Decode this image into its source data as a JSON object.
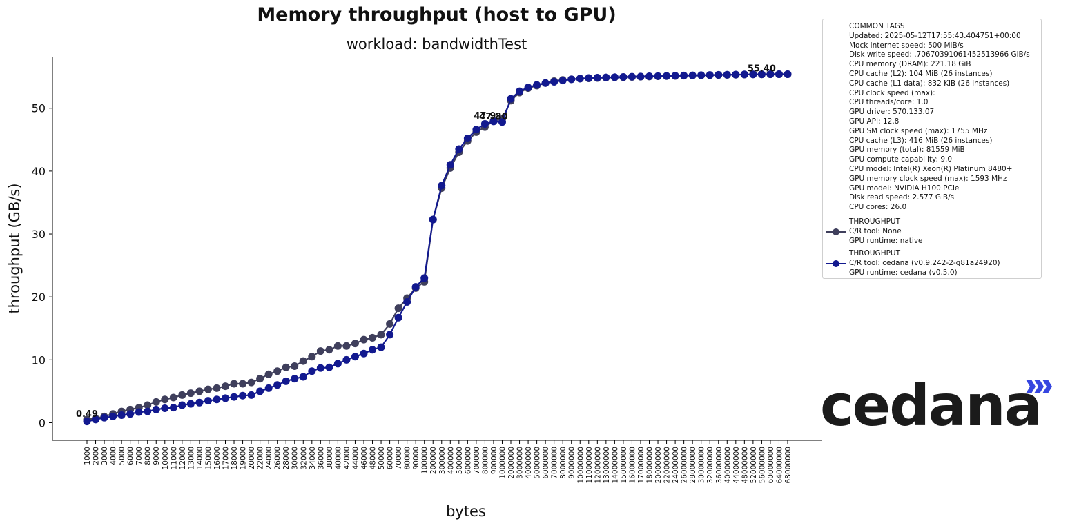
{
  "chart_data": {
    "type": "line",
    "title": "Memory throughput (host to GPU)",
    "subtitle": "workload: bandwidthTest",
    "xlabel": "bytes",
    "ylabel": "throughput (GB/s)",
    "ylim": [
      -2.8,
      58.2
    ],
    "yticks": [
      0,
      10,
      20,
      30,
      40,
      50
    ],
    "grid": false,
    "legend_position": "right",
    "categories": [
      "1000",
      "2000",
      "3000",
      "4000",
      "5000",
      "6000",
      "7000",
      "8000",
      "9000",
      "10000",
      "11000",
      "12000",
      "13000",
      "14000",
      "15000",
      "16000",
      "17000",
      "18000",
      "19000",
      "20000",
      "22000",
      "24000",
      "26000",
      "28000",
      "30000",
      "32000",
      "34000",
      "36000",
      "38000",
      "40000",
      "42000",
      "44000",
      "46000",
      "48000",
      "50000",
      "60000",
      "70000",
      "80000",
      "90000",
      "100000",
      "200000",
      "300000",
      "400000",
      "500000",
      "600000",
      "700000",
      "800000",
      "900000",
      "1000000",
      "2000000",
      "3000000",
      "4000000",
      "5000000",
      "6000000",
      "7000000",
      "8000000",
      "9000000",
      "10000000",
      "11000000",
      "12000000",
      "13000000",
      "14000000",
      "15000000",
      "16000000",
      "17000000",
      "18000000",
      "20000000",
      "22000000",
      "24000000",
      "26000000",
      "28000000",
      "30000000",
      "32000000",
      "36000000",
      "40000000",
      "44000000",
      "48000000",
      "52000000",
      "56000000",
      "60000000",
      "64000000",
      "68000000"
    ],
    "series": [
      {
        "name": "THROUGHPUT",
        "legend_lines": [
          "THROUGHPUT",
          "C/R tool: None",
          "GPU runtime: native"
        ],
        "color": "#3f3f5c",
        "values": [
          0.49,
          0.7,
          1.0,
          1.4,
          1.8,
          2.1,
          2.4,
          2.8,
          3.3,
          3.7,
          4.0,
          4.4,
          4.7,
          5.0,
          5.3,
          5.5,
          5.8,
          6.2,
          6.2,
          6.4,
          7.0,
          7.7,
          8.2,
          8.8,
          9.0,
          9.8,
          10.5,
          11.4,
          11.6,
          12.2,
          12.2,
          12.6,
          13.2,
          13.5,
          14.0,
          15.7,
          18.2,
          19.8,
          21.4,
          22.4,
          32.3,
          37.3,
          40.5,
          43.0,
          44.8,
          46.2,
          47.0,
          48.0,
          48.3,
          51.2,
          52.5,
          53.2,
          53.6,
          54.0,
          54.3,
          54.5,
          54.6,
          54.7,
          54.75,
          54.8,
          54.85,
          54.9,
          54.93,
          54.97,
          55.0,
          55.03,
          55.07,
          55.1,
          55.13,
          55.17,
          55.2,
          55.22,
          55.25,
          55.28,
          55.3,
          55.32,
          55.35,
          55.37,
          55.38,
          55.39,
          55.4,
          55.4
        ]
      },
      {
        "name": "THROUGHPUT",
        "legend_lines": [
          "THROUGHPUT",
          "C/R tool: cedana (v0.9.242-2-g81a24920)",
          "GPU runtime: cedana (v0.5.0)"
        ],
        "color": "#12198f",
        "values": [
          0.2,
          0.5,
          0.8,
          1.0,
          1.2,
          1.4,
          1.7,
          1.8,
          2.1,
          2.3,
          2.4,
          2.8,
          3.0,
          3.2,
          3.5,
          3.7,
          3.9,
          4.1,
          4.3,
          4.4,
          5.0,
          5.5,
          6.0,
          6.6,
          7.0,
          7.3,
          8.2,
          8.7,
          8.8,
          9.4,
          10.0,
          10.5,
          11.0,
          11.6,
          12.0,
          14.0,
          16.7,
          19.2,
          21.6,
          23.0,
          32.3,
          37.7,
          41.0,
          43.5,
          45.2,
          46.6,
          47.5,
          47.9,
          47.8,
          51.5,
          52.7,
          53.3,
          53.7,
          54.0,
          54.2,
          54.4,
          54.6,
          54.7,
          54.8,
          54.85,
          54.9,
          54.93,
          54.97,
          55.0,
          55.03,
          55.07,
          55.1,
          55.13,
          55.17,
          55.2,
          55.22,
          55.25,
          55.28,
          55.3,
          55.32,
          55.35,
          55.37,
          55.38,
          55.39,
          55.4,
          55.4,
          55.4
        ]
      }
    ],
    "annotations": [
      {
        "text": "0.49",
        "category": "1000",
        "value": 0.49
      },
      {
        "text": "47.9",
        "category": "800000",
        "value": 47.9
      },
      {
        "text": "47.80",
        "category": "900000",
        "value": 47.8
      },
      {
        "text": "55.40",
        "category": "56000000",
        "value": 55.4
      }
    ]
  },
  "legend": {
    "tags_header": "COMMON TAGS",
    "tags": [
      "Updated: 2025-05-12T17:55:43.404751+00:00",
      "Mock internet speed: 500 MiB/s",
      "Disk write speed: .70670391061452513966 GiB/s",
      "CPU memory (DRAM): 221.18 GiB",
      "CPU cache (L2): 104 MiB (26 instances)",
      "CPU cache (L1 data): 832 KiB (26 instances)",
      "CPU clock speed (max):",
      "CPU threads/core: 1.0",
      "GPU driver: 570.133.07",
      "GPU API: 12.8",
      "GPU SM clock speed (max): 1755 MHz",
      "CPU cache (L3): 416 MiB (26 instances)",
      "GPU memory (total): 81559 MiB",
      "GPU compute capability: 9.0",
      "CPU model: Intel(R) Xeon(R) Platinum 8480+",
      "GPU memory clock speed (max): 1593 MHz",
      "GPU model: NVIDIA H100 PCIe",
      "Disk read speed: 2.577 GiB/s",
      "CPU cores: 26.0"
    ]
  },
  "logo": {
    "text": "cedana",
    "color": "#1b1b1b",
    "accent_color": "#3646e0"
  }
}
